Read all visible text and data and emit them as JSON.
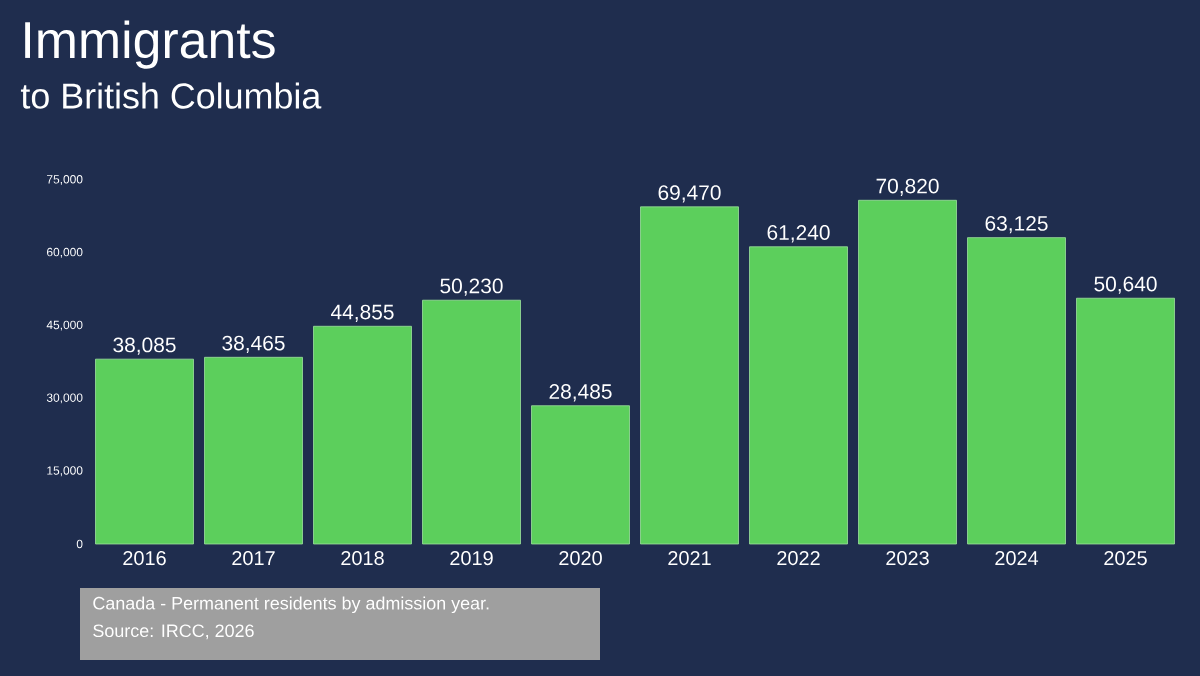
{
  "chart_data": {
    "type": "bar",
    "title": "Immigrants",
    "subtitle": "to British Columbia",
    "categories": [
      "2016",
      "2017",
      "2018",
      "2019",
      "2020",
      "2021",
      "2022",
      "2023",
      "2024",
      "2025"
    ],
    "values": [
      38085,
      38465,
      44855,
      50230,
      28485,
      69470,
      61240,
      70820,
      63125,
      50640
    ],
    "value_labels": [
      "38,085",
      "38,465",
      "44,855",
      "50,230",
      "28,485",
      "69,470",
      "61,240",
      "70,820",
      "63,125",
      "50,640"
    ],
    "color": "#5ccf5c",
    "ylim": [
      0,
      75000
    ],
    "yticks": [
      0,
      {
        "value": 15000,
        "label": "15,000"
      },
      {
        "value": 30000,
        "label": "30,000"
      },
      {
        "value": 45000,
        "label": "45,000"
      },
      {
        "value": 60000,
        "label": "60,000"
      },
      {
        "value": 75000,
        "label": "75,000"
      }
    ],
    "annotations": [
      "Canada - Permanent residents by admission year.",
      "Source: IRCC, 2026"
    ]
  }
}
